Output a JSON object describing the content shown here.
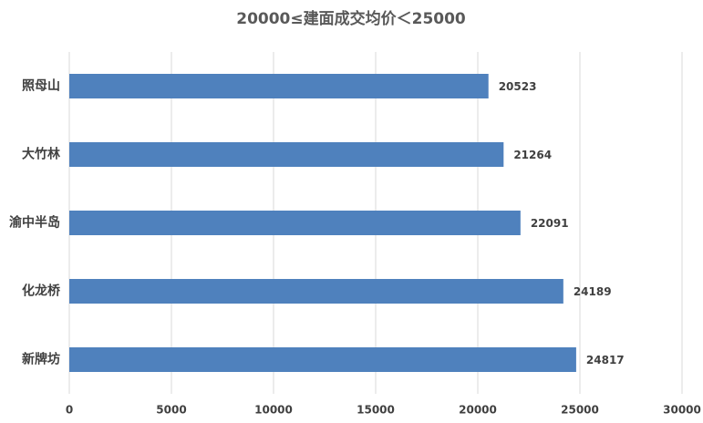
{
  "chart_data": {
    "type": "barh",
    "title": "20000≤建面成交均价＜25000",
    "categories": [
      "照母山",
      "大竹林",
      "渝中半岛",
      "化龙桥",
      "新牌坊"
    ],
    "values": [
      20523,
      21264,
      22091,
      24189,
      24817
    ],
    "color": "#4f81bd",
    "xlim": [
      0,
      30000
    ],
    "xticks": [
      0,
      5000,
      10000,
      15000,
      20000,
      25000,
      30000
    ],
    "grid": true
  }
}
